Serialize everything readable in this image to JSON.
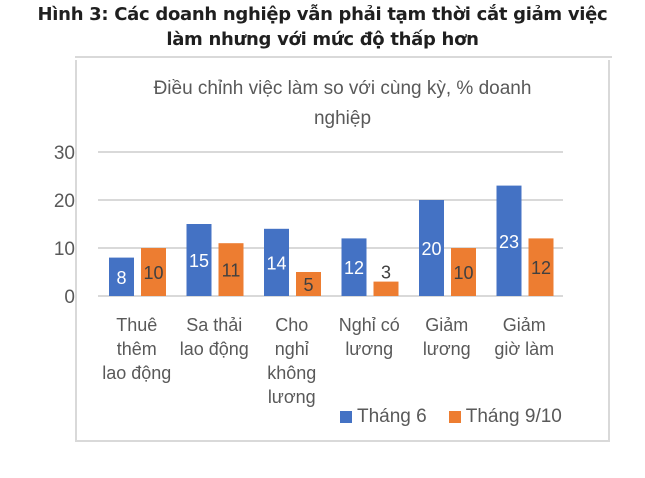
{
  "figure_title": [
    "Hình 3: Các doanh nghiệp vẫn phải tạm thời cắt giảm việc",
    "làm nhưng với mức độ thấp hơn"
  ],
  "chart_data": {
    "type": "bar",
    "title": [
      "Điều chỉnh việc làm so với cùng kỳ, % doanh",
      "nghiệp"
    ],
    "categories": [
      [
        "Thuê",
        "thêm",
        "lao động"
      ],
      [
        "Sa thải",
        "lao động"
      ],
      [
        "Cho",
        "nghỉ",
        "không",
        "lương"
      ],
      [
        "Nghỉ có",
        "lương"
      ],
      [
        "Giảm",
        "lương"
      ],
      [
        "Giảm",
        "giờ làm"
      ]
    ],
    "series": [
      {
        "name": "Tháng 6",
        "color": "#4472c4",
        "values": [
          8,
          15,
          14,
          12,
          20,
          23
        ]
      },
      {
        "name": "Tháng 9/10",
        "color": "#ed7d31",
        "values": [
          10,
          11,
          5,
          3,
          10,
          12
        ]
      }
    ],
    "ylim": [
      0,
      30
    ],
    "yticks": [
      0,
      10,
      20,
      30
    ],
    "grid": true,
    "legend": "bottom-right",
    "data_labels": true
  }
}
